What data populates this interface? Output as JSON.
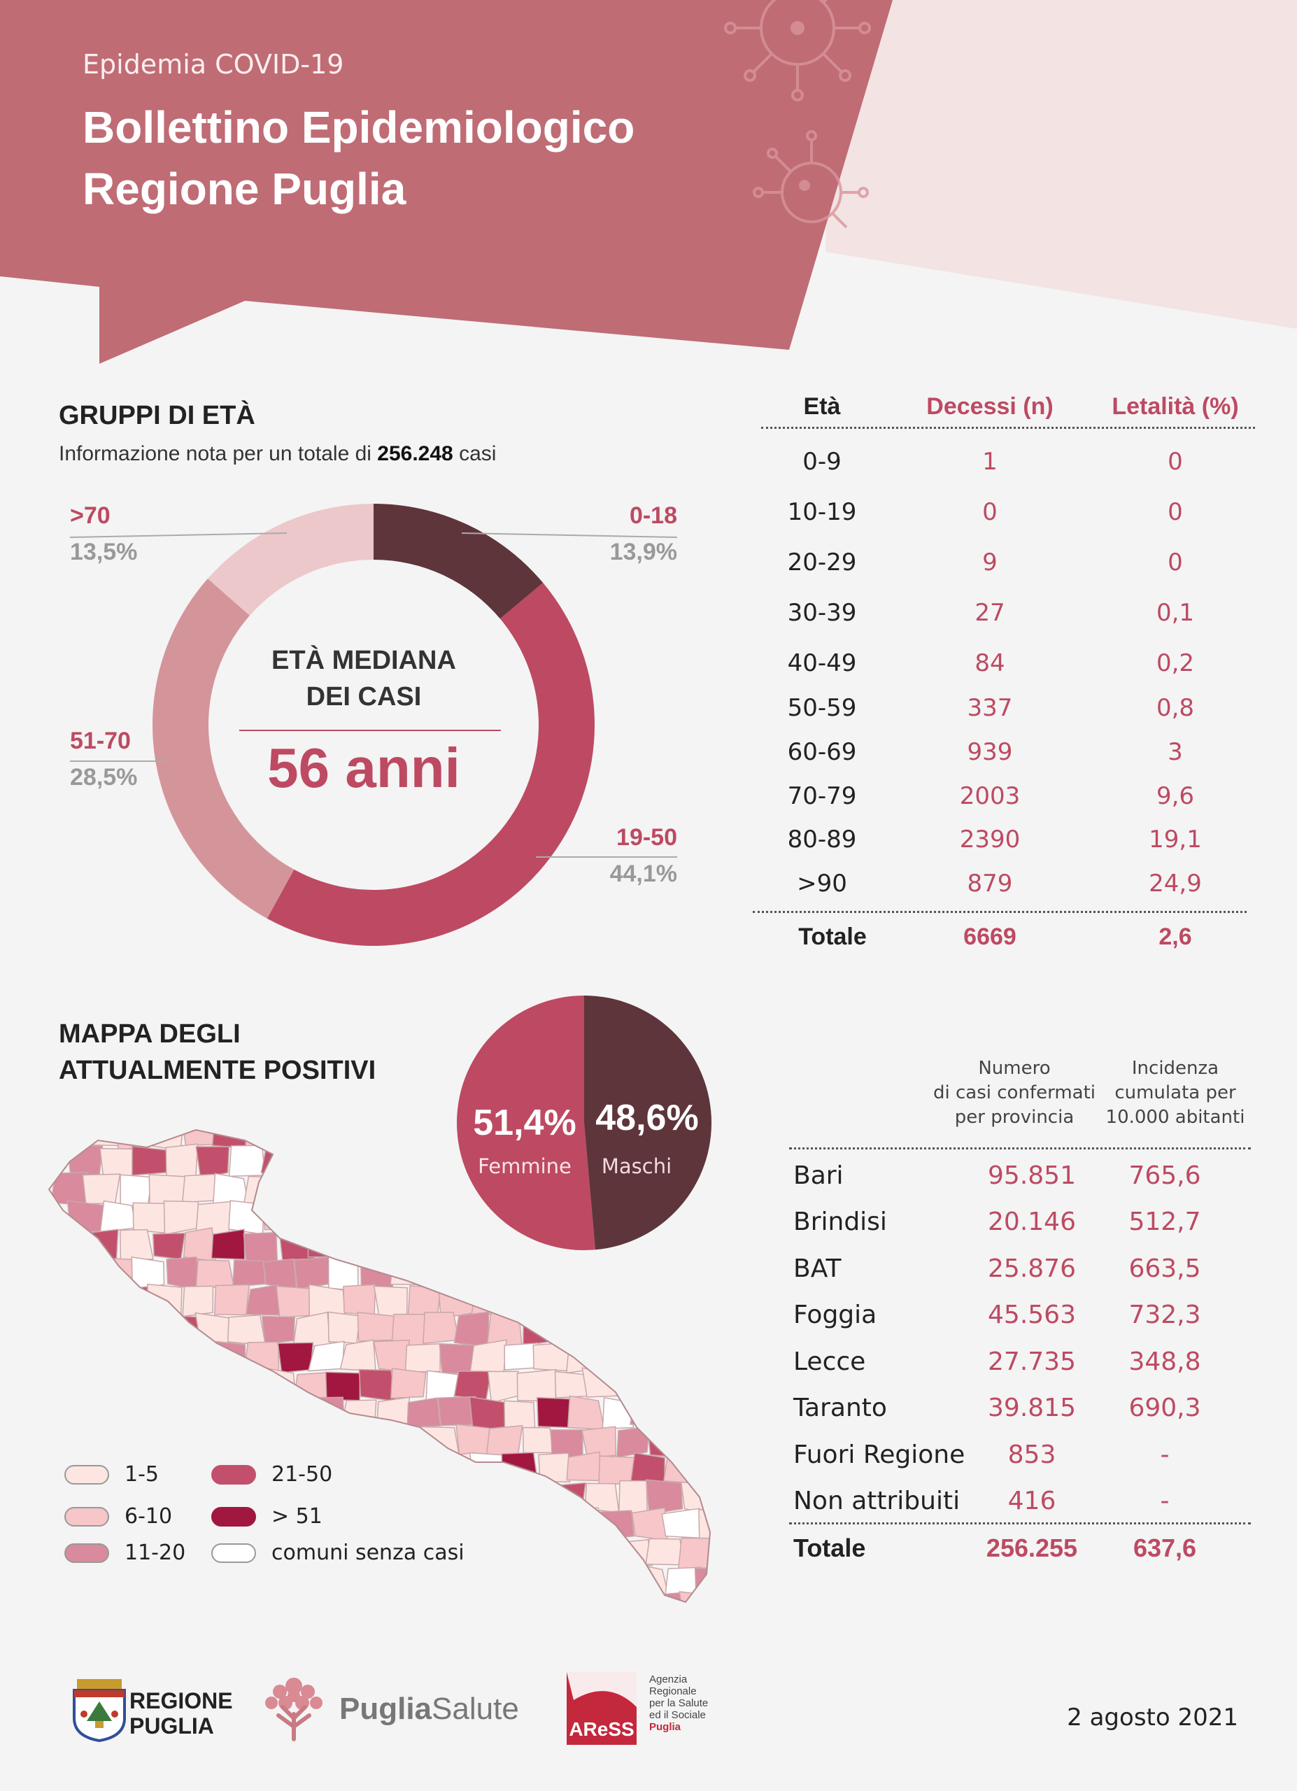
{
  "header": {
    "kicker": "Epidemia COVID-19",
    "title_line1": "Bollettino Epidemiologico",
    "title_line2": "Regione Puglia"
  },
  "colors": {
    "brand": "#bf6c75",
    "accent": "#bd4a62",
    "dark": "#5e353b"
  },
  "age_groups": {
    "title": "GRUPPI DI ETÀ",
    "note_prefix": "Informazione nota per un totale di",
    "note_total": "256.248",
    "note_suffix": "casi",
    "center_title_line1": "ETÀ MEDIANA",
    "center_title_line2": "DEI CASI",
    "center_value": "56 anni",
    "labels": [
      {
        "name": ">70",
        "pct": "13,5%"
      },
      {
        "name": "0-18",
        "pct": "13,9%"
      },
      {
        "name": "51-70",
        "pct": "28,5%"
      },
      {
        "name": "19-50",
        "pct": "44,1%"
      }
    ]
  },
  "chart_data": [
    {
      "type": "pie",
      "title": "GRUPPI DI ETÀ",
      "categories": [
        "0-18",
        "19-50",
        "51-70",
        ">70"
      ],
      "values": [
        13.9,
        44.1,
        28.5,
        13.5
      ],
      "colors": [
        "#5e353b",
        "#bd4a62",
        "#d4959a",
        "#ecc8cb"
      ]
    },
    {
      "type": "pie",
      "categories": [
        "Femmine",
        "Maschi"
      ],
      "values": [
        51.4,
        48.6
      ],
      "colors": [
        "#bd4a62",
        "#5e353b"
      ]
    }
  ],
  "sex": {
    "female_pct": "51,4%",
    "female_label": "Femmine",
    "male_pct": "48,6%",
    "male_label": "Maschi"
  },
  "deaths_table": {
    "headers": [
      "Età",
      "Decessi (n)",
      "Letalità (%)"
    ],
    "rows": [
      [
        "0-9",
        "1",
        "0"
      ],
      [
        "10-19",
        "0",
        "0"
      ],
      [
        "20-29",
        "9",
        "0"
      ],
      [
        "30-39",
        "27",
        "0,1"
      ],
      [
        "40-49",
        "84",
        "0,2"
      ],
      [
        "50-59",
        "337",
        "0,8"
      ],
      [
        "60-69",
        "939",
        "3"
      ],
      [
        "70-79",
        "2003",
        "9,6"
      ],
      [
        "80-89",
        "2390",
        "19,1"
      ],
      [
        ">90",
        "879",
        "24,9"
      ]
    ],
    "total": [
      "Totale",
      "6669",
      "2,6"
    ]
  },
  "map": {
    "title_line1": "MAPPA DEGLI",
    "title_line2": "ATTUALMENTE POSITIVI",
    "legend": [
      {
        "label": "1-5",
        "color": "#fde6e1"
      },
      {
        "label": "6-10",
        "color": "#f7c6c8"
      },
      {
        "label": "11-20",
        "color": "#d98a9c"
      },
      {
        "label": "21-50",
        "color": "#c2506c"
      },
      {
        "label": "> 51",
        "color": "#a1173f"
      },
      {
        "label": "comuni senza casi",
        "color": "#ffffff"
      }
    ]
  },
  "province_table": {
    "header_col1": [
      "Numero",
      "di casi confermati",
      "per provincia"
    ],
    "header_col2": [
      "Incidenza",
      "cumulata per",
      "10.000 abitanti"
    ],
    "rows": [
      [
        "Bari",
        "95.851",
        "765,6"
      ],
      [
        "Brindisi",
        "20.146",
        "512,7"
      ],
      [
        "BAT",
        "25.876",
        "663,5"
      ],
      [
        "Foggia",
        "45.563",
        "732,3"
      ],
      [
        "Lecce",
        "27.735",
        "348,8"
      ],
      [
        "Taranto",
        "39.815",
        "690,3"
      ],
      [
        "Fuori Regione",
        "853",
        "-"
      ],
      [
        "Non attribuiti",
        "416",
        "-"
      ]
    ],
    "total": [
      "Totale",
      "256.255",
      "637,6"
    ]
  },
  "footer": {
    "logo1_line1": "REGIONE",
    "logo1_line2": "PUGLIA",
    "logo2_bold": "Puglia",
    "logo2_light": "Salute",
    "logo3_abbr": "AReSS",
    "logo3_text": [
      "Agenzia",
      "Regionale",
      "per la Salute",
      "ed il Sociale",
      "Puglia"
    ],
    "date": "2 agosto 2021"
  }
}
